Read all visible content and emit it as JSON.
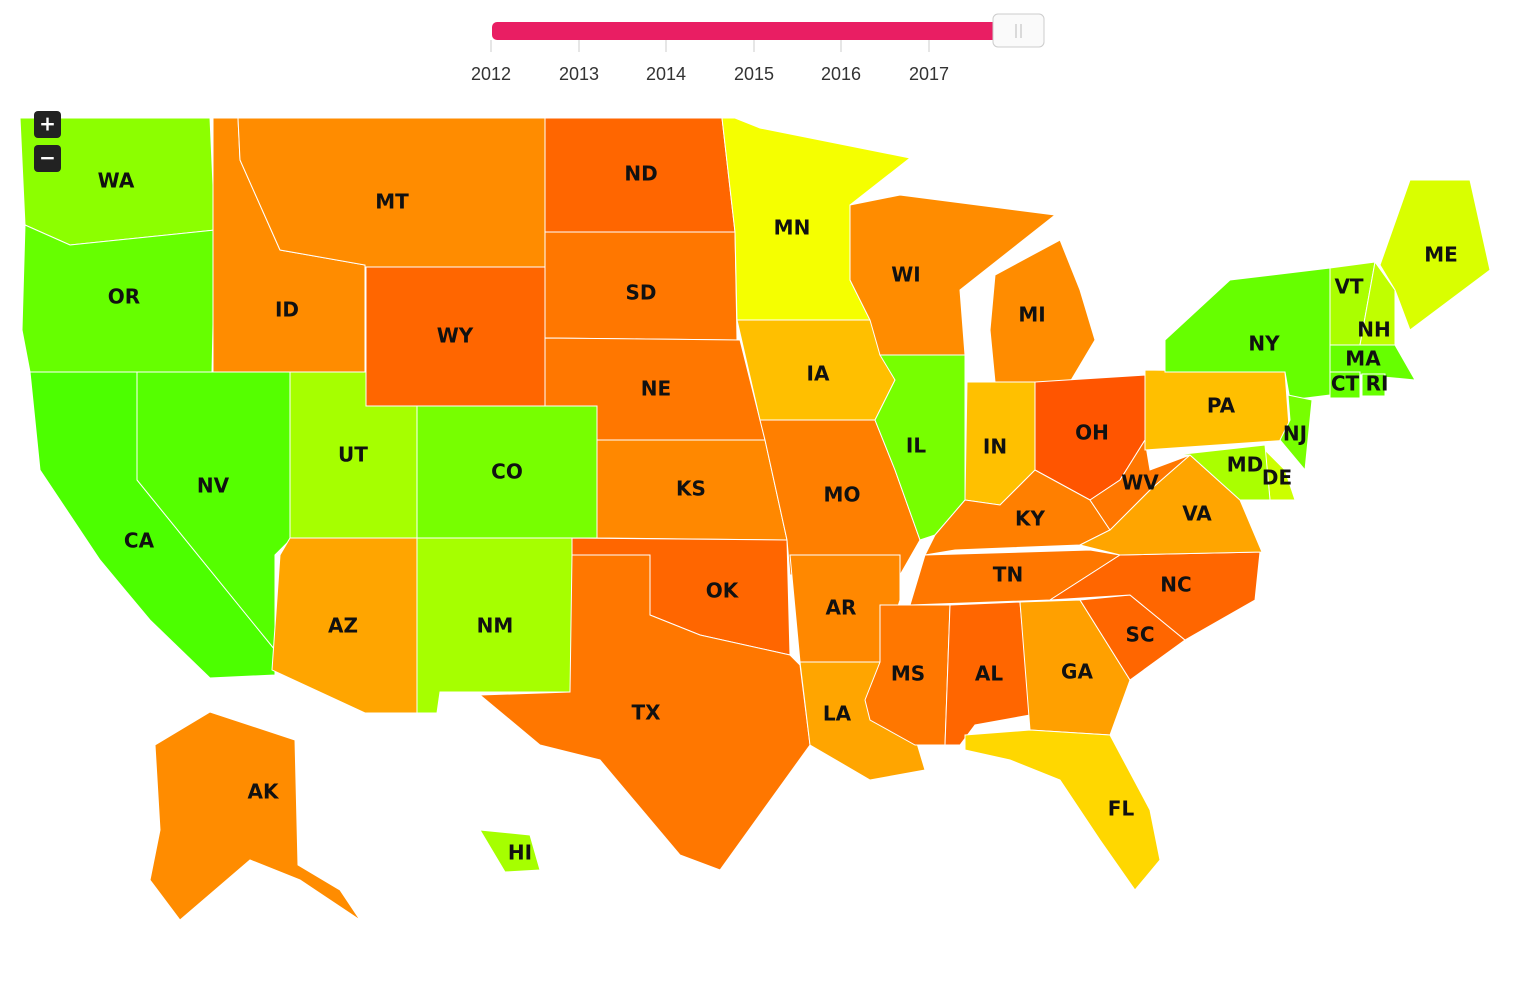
{
  "slider": {
    "ticks": [
      2012,
      2013,
      2014,
      2015,
      2016,
      2017
    ],
    "color": "#e91e63"
  },
  "zoom": {
    "in": "+",
    "out": "−"
  },
  "states": [
    {
      "label": "WA",
      "color": "#8cff00"
    },
    {
      "label": "OR",
      "color": "#66ff00"
    },
    {
      "label": "CA",
      "color": "#4cff00"
    },
    {
      "label": "NV",
      "color": "#55ff00"
    },
    {
      "label": "ID",
      "color": "#ff8c00"
    },
    {
      "label": "MT",
      "color": "#ff8c00"
    },
    {
      "label": "WY",
      "color": "#ff6600"
    },
    {
      "label": "UT",
      "color": "#a6ff00"
    },
    {
      "label": "CO",
      "color": "#77ff00"
    },
    {
      "label": "AZ",
      "color": "#ffa500"
    },
    {
      "label": "NM",
      "color": "#a6ff00"
    },
    {
      "label": "ND",
      "color": "#ff6600"
    },
    {
      "label": "SD",
      "color": "#ff7700"
    },
    {
      "label": "NE",
      "color": "#ff7700"
    },
    {
      "label": "KS",
      "color": "#ff8800"
    },
    {
      "label": "OK",
      "color": "#ff6600"
    },
    {
      "label": "TX",
      "color": "#ff7700"
    },
    {
      "label": "MN",
      "color": "#f5ff00"
    },
    {
      "label": "IA",
      "color": "#ffbf00"
    },
    {
      "label": "MO",
      "color": "#ff7f00"
    },
    {
      "label": "AR",
      "color": "#ff8800"
    },
    {
      "label": "LA",
      "color": "#ffa500"
    },
    {
      "label": "WI",
      "color": "#ff8c00"
    },
    {
      "label": "IL",
      "color": "#77ff00"
    },
    {
      "label": "MI",
      "color": "#ff8c00"
    },
    {
      "label": "IN",
      "color": "#ffc000"
    },
    {
      "label": "OH",
      "color": "#ff5500"
    },
    {
      "label": "KY",
      "color": "#ff7f00"
    },
    {
      "label": "TN",
      "color": "#ff7700"
    },
    {
      "label": "MS",
      "color": "#ff7700"
    },
    {
      "label": "AL",
      "color": "#ff6600"
    },
    {
      "label": "GA",
      "color": "#ffa000"
    },
    {
      "label": "FL",
      "color": "#ffd700"
    },
    {
      "label": "SC",
      "color": "#ff6600"
    },
    {
      "label": "NC",
      "color": "#ff6600"
    },
    {
      "label": "VA",
      "color": "#ffa500"
    },
    {
      "label": "WV",
      "color": "#ff7700"
    },
    {
      "label": "PA",
      "color": "#ffbf00"
    },
    {
      "label": "NY",
      "color": "#66ff00"
    },
    {
      "label": "VT",
      "color": "#aaff00"
    },
    {
      "label": "NH",
      "color": "#c0ff00"
    },
    {
      "label": "ME",
      "color": "#d9ff00"
    },
    {
      "label": "MA",
      "color": "#66ff00"
    },
    {
      "label": "CT",
      "color": "#66ff00"
    },
    {
      "label": "RI",
      "color": "#66ff00"
    },
    {
      "label": "NJ",
      "color": "#77ff00"
    },
    {
      "label": "DE",
      "color": "#ccff00"
    },
    {
      "label": "MD",
      "color": "#aaff00"
    },
    {
      "label": "AK",
      "color": "#ff8c00"
    },
    {
      "label": "HI",
      "color": "#a6ff00"
    }
  ]
}
